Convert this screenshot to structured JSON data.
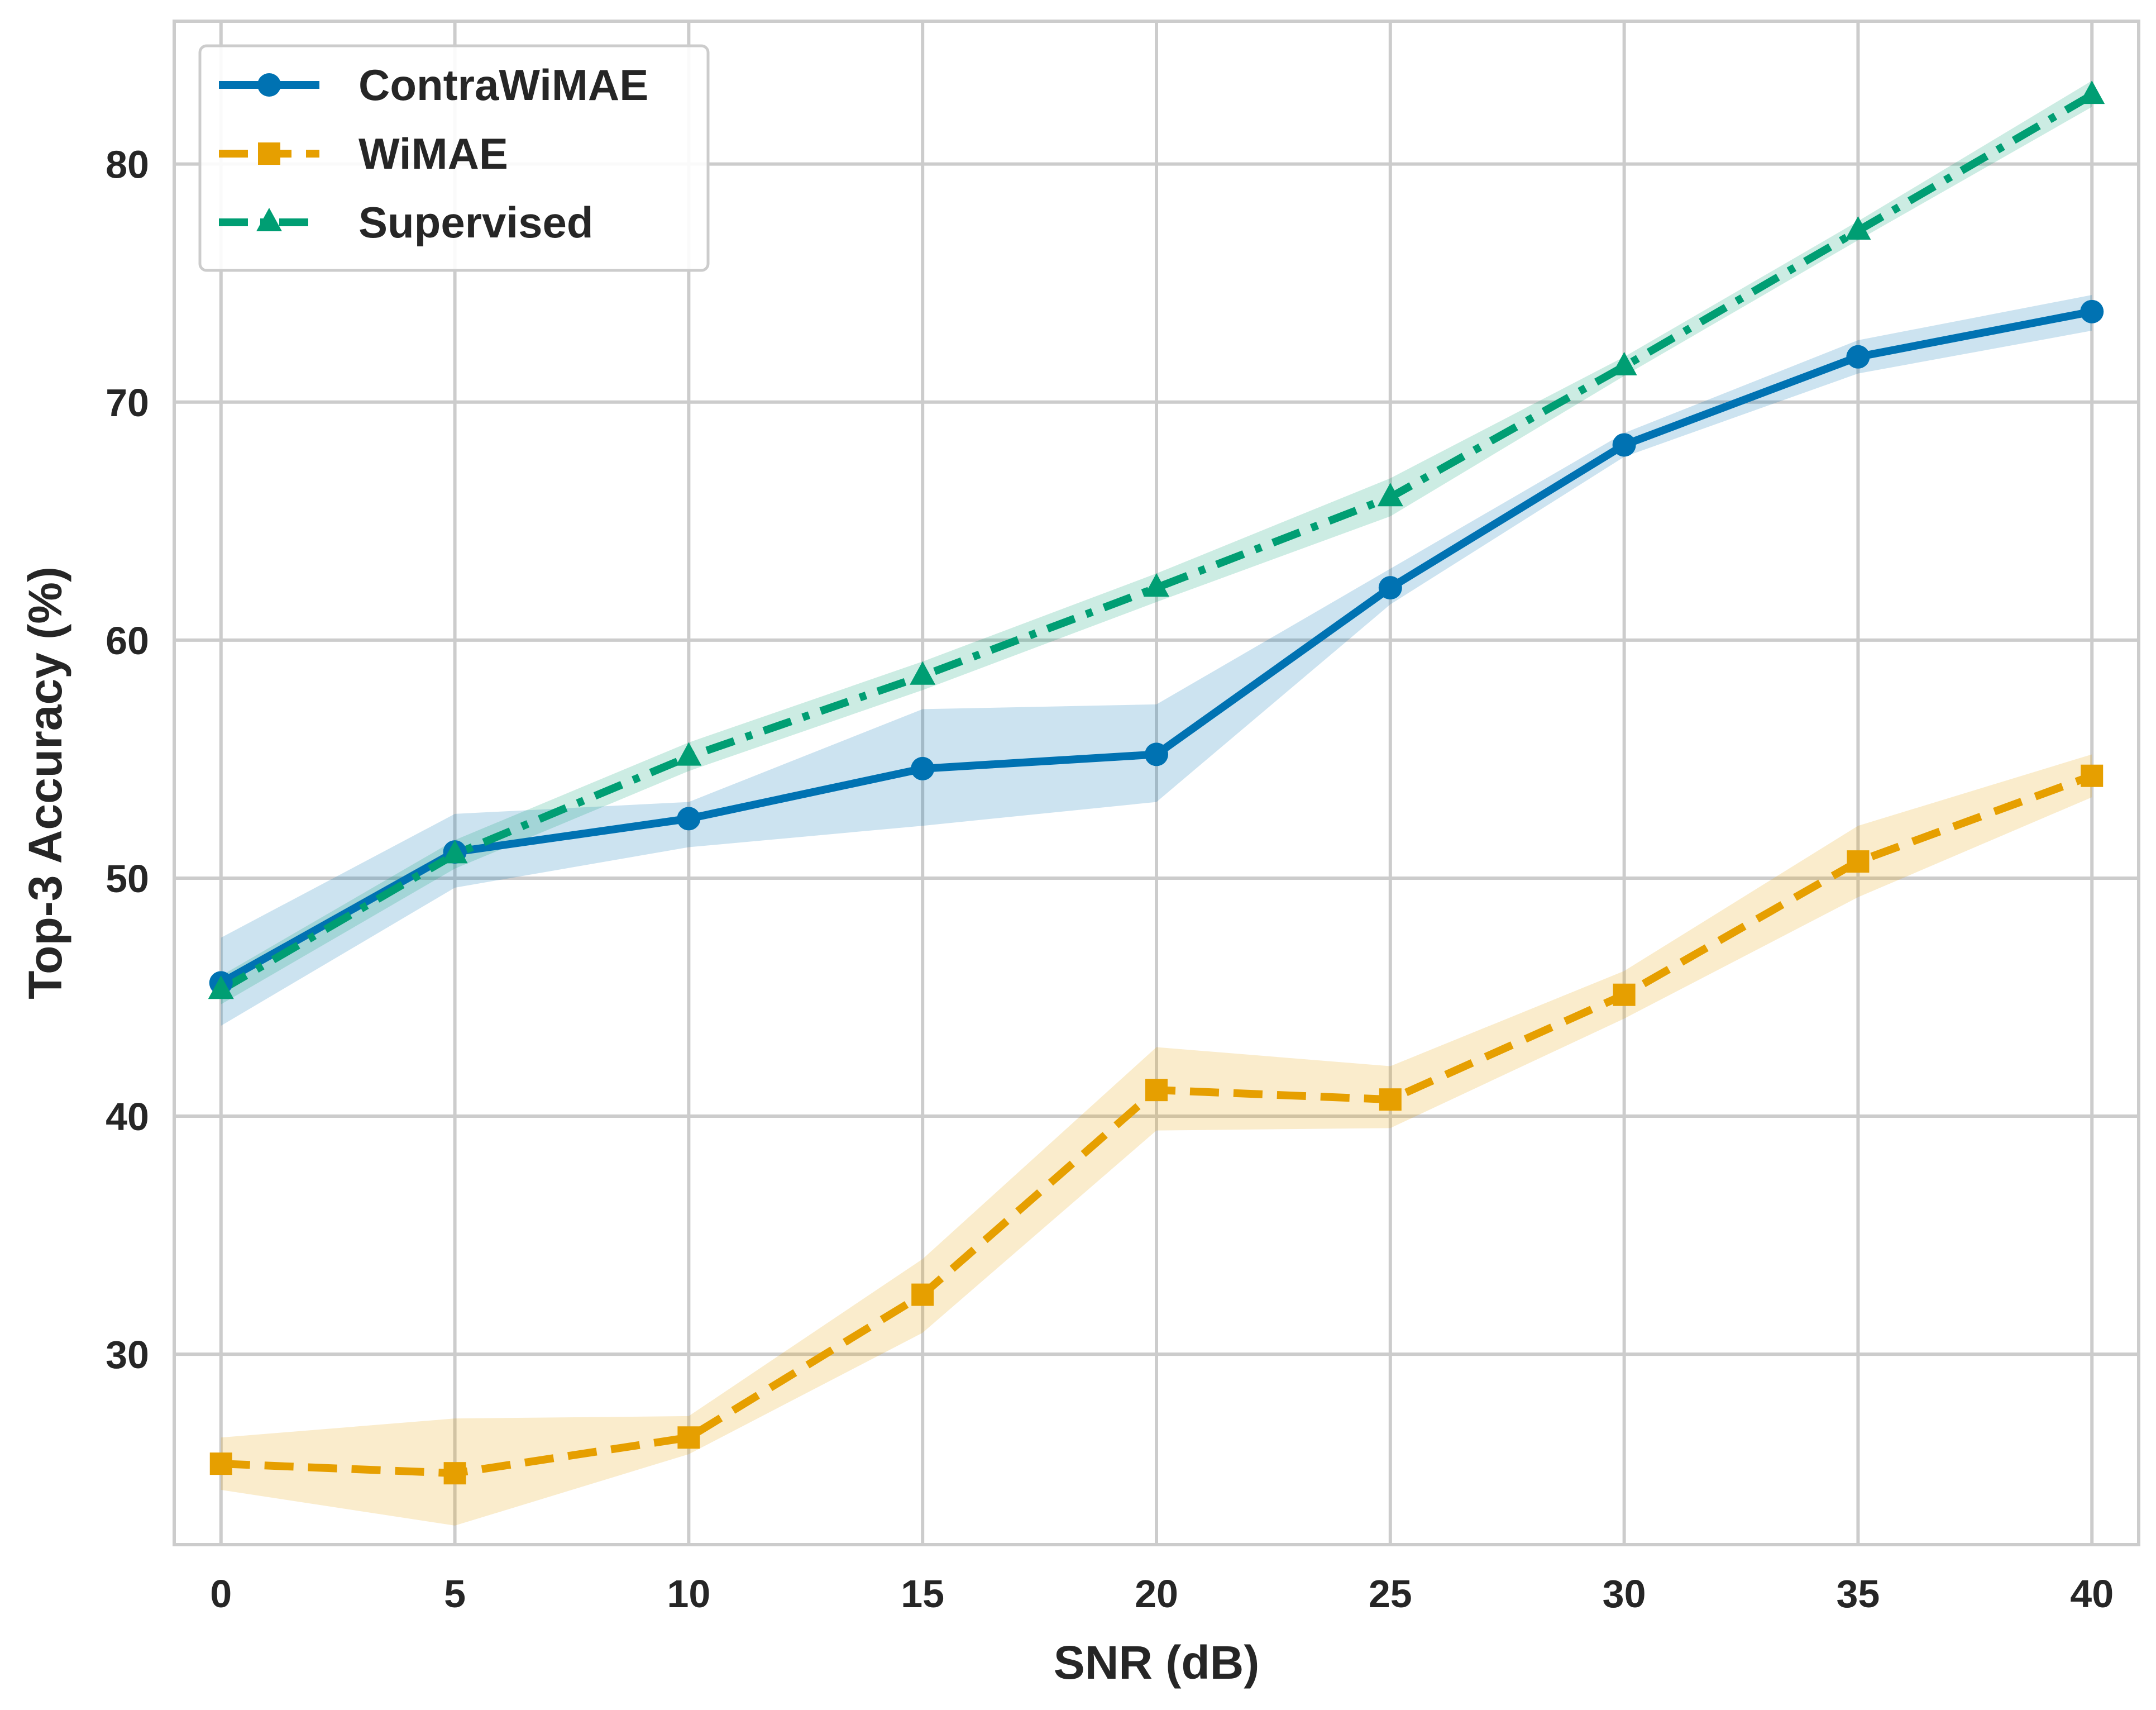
{
  "chart_data": {
    "type": "line",
    "title": "",
    "xlabel": "SNR (dB)",
    "ylabel": "Top-3 Accuracy (%)",
    "x": [
      0,
      5,
      10,
      15,
      20,
      25,
      30,
      35,
      40
    ],
    "xlim": [
      -1,
      41
    ],
    "ylim": [
      22,
      86
    ],
    "xticks": [
      0,
      5,
      10,
      15,
      20,
      25,
      30,
      35,
      40
    ],
    "yticks": [
      30,
      40,
      50,
      60,
      70,
      80
    ],
    "grid": true,
    "legend_position": "top-left",
    "series": [
      {
        "name": "ContraWiMAE",
        "color": "#0072B2",
        "line_style": "solid",
        "marker": "circle",
        "values": [
          45.6,
          51.1,
          52.5,
          54.6,
          55.2,
          62.2,
          68.2,
          71.9,
          73.8
        ],
        "lower": [
          43.8,
          49.6,
          51.3,
          52.2,
          53.2,
          61.5,
          67.7,
          71.2,
          73.0
        ],
        "upper": [
          47.5,
          52.7,
          53.2,
          57.1,
          57.3,
          63.0,
          68.7,
          72.6,
          74.5
        ]
      },
      {
        "name": "WiMAE",
        "color": "#E69F00",
        "line_style": "dashed",
        "marker": "square",
        "values": [
          25.4,
          25.0,
          26.5,
          32.5,
          41.1,
          40.7,
          45.1,
          50.7,
          54.3
        ],
        "lower": [
          24.3,
          22.8,
          25.8,
          30.9,
          39.4,
          39.5,
          44.1,
          49.2,
          53.4
        ],
        "upper": [
          26.5,
          27.3,
          27.4,
          34.0,
          42.9,
          42.1,
          46.1,
          52.2,
          55.2
        ]
      },
      {
        "name": "Supervised",
        "color": "#009E73",
        "line_style": "dashdot",
        "marker": "triangle",
        "values": [
          45.3,
          51.0,
          55.1,
          58.5,
          62.2,
          66.0,
          71.5,
          77.2,
          82.9
        ],
        "lower": [
          44.7,
          50.4,
          54.5,
          57.9,
          61.6,
          65.2,
          71.1,
          76.8,
          82.4
        ],
        "upper": [
          45.9,
          51.6,
          55.7,
          59.1,
          62.8,
          66.8,
          71.9,
          77.6,
          83.5
        ]
      }
    ]
  }
}
